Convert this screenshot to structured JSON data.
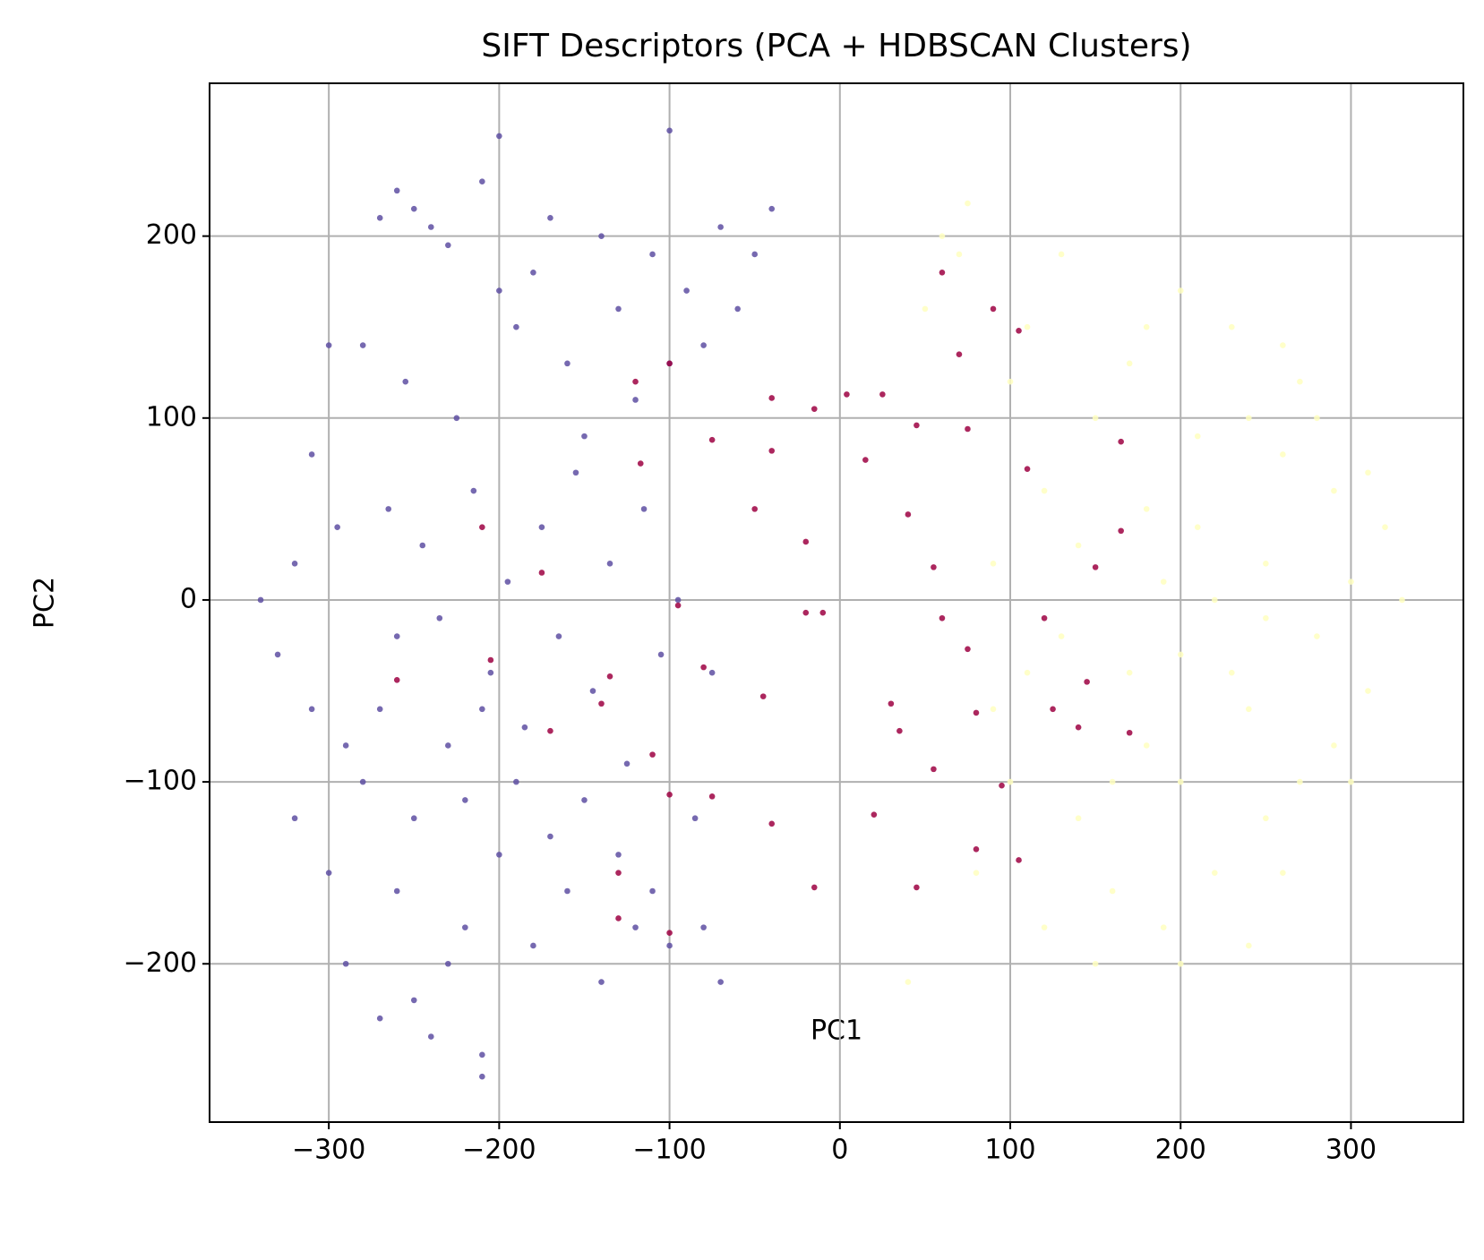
{
  "chart_data": {
    "type": "scatter",
    "title": "SIFT Descriptors (PCA + HDBSCAN Clusters)",
    "x_label": "PC1",
    "y_label": "PC2",
    "xlim": [
      -370,
      366
    ],
    "ylim": [
      -287,
      284
    ],
    "grid": true,
    "xticks": [
      {
        "value": -300,
        "label": "−300"
      },
      {
        "value": -200,
        "label": "−200"
      },
      {
        "value": -100,
        "label": "−100"
      },
      0,
      100,
      200,
      300
    ],
    "yticks": [
      {
        "value": -200,
        "label": "−200"
      },
      {
        "value": -100,
        "label": "−100"
      },
      0,
      100,
      200
    ],
    "series": [
      {
        "color": "#5e4fa2",
        "x": [
          -250,
          -240,
          -260,
          -230,
          -210,
          -200,
          -270,
          -280,
          -255,
          -225,
          -190,
          -180,
          -170,
          -160,
          -150,
          -140,
          -130,
          -120,
          -110,
          -100,
          -90,
          -80,
          -70,
          -60,
          -50,
          -40,
          -300,
          -310,
          -320,
          -330,
          -340,
          -290,
          -265,
          -245,
          -235,
          -215,
          -205,
          -195,
          -185,
          -175,
          -165,
          -155,
          -145,
          -135,
          -125,
          -115,
          -105,
          -95,
          -85,
          -75,
          -250,
          -240,
          -230,
          -220,
          -210,
          -270,
          -260,
          -250,
          -200,
          -180,
          -160,
          -140,
          -120,
          -100,
          -300,
          -290,
          -280,
          -270,
          -260,
          -230,
          -220,
          -210,
          -190,
          -170,
          -150,
          -130,
          -110,
          -320,
          -310,
          -295,
          -200,
          -100,
          -210,
          -80,
          -70
        ],
        "y": [
          215,
          205,
          225,
          195,
          230,
          170,
          210,
          140,
          120,
          100,
          150,
          180,
          210,
          130,
          90,
          200,
          160,
          110,
          190,
          130,
          170,
          140,
          205,
          160,
          190,
          215,
          140,
          80,
          20,
          -30,
          0,
          -80,
          50,
          30,
          -10,
          60,
          -40,
          10,
          -70,
          40,
          -20,
          70,
          -50,
          20,
          -90,
          50,
          -30,
          0,
          -120,
          -40,
          -220,
          -240,
          -200,
          -180,
          -250,
          -230,
          -160,
          -120,
          -140,
          -190,
          -160,
          -210,
          -180,
          -190,
          -150,
          -200,
          -100,
          -60,
          -20,
          -80,
          -110,
          -60,
          -100,
          -130,
          -110,
          -140,
          -160,
          -120,
          -60,
          40,
          255,
          258,
          -262,
          -180,
          -210
        ]
      },
      {
        "color": "#ffffbf",
        "x": [
          220,
          250,
          200,
          180,
          240,
          260,
          280,
          300,
          330,
          310,
          290,
          270,
          230,
          200,
          170,
          150,
          140,
          160,
          190,
          220,
          250,
          270,
          290,
          120,
          110,
          100,
          90,
          80,
          70,
          60,
          130,
          200,
          240,
          150,
          180,
          210,
          320,
          300,
          260,
          120,
          100,
          50,
          40,
          75,
          230,
          210,
          250,
          190,
          170,
          280,
          310,
          140,
          160,
          200,
          240,
          260,
          180,
          110,
          90,
          130
        ],
        "y": [
          0,
          20,
          -30,
          50,
          -60,
          80,
          -20,
          10,
          0,
          -50,
          60,
          120,
          150,
          170,
          130,
          100,
          -120,
          -160,
          -180,
          -150,
          -120,
          -100,
          -80,
          60,
          -40,
          -100,
          20,
          -150,
          190,
          200,
          190,
          -200,
          -190,
          -200,
          -80,
          90,
          40,
          -100,
          140,
          -180,
          120,
          160,
          -210,
          218,
          -40,
          40,
          -10,
          10,
          -40,
          100,
          70,
          30,
          -100,
          -100,
          100,
          -150,
          150,
          150,
          -60,
          -20
        ]
      },
      {
        "color": "#9e0142",
        "x": [
          60,
          90,
          105,
          70,
          -120,
          -100,
          25,
          4,
          -40,
          -15,
          45,
          75,
          -117,
          -75,
          -40,
          15,
          110,
          165,
          -50,
          40,
          -20,
          55,
          150,
          -175,
          -95,
          -20,
          -10,
          60,
          120,
          75,
          -140,
          -80,
          -45,
          30,
          80,
          125,
          145,
          -110,
          -170,
          35,
          55,
          95,
          -100,
          -75,
          -130,
          -40,
          20,
          -15,
          45,
          80,
          105,
          -100,
          -130,
          -210,
          -205,
          -135,
          -260,
          140,
          165,
          170
        ],
        "y": [
          180,
          160,
          148,
          135,
          120,
          130,
          113,
          113,
          111,
          105,
          96,
          94,
          75,
          88,
          82,
          77,
          72,
          87,
          50,
          47,
          32,
          18,
          18,
          15,
          -3,
          -7,
          -7,
          -10,
          -10,
          -27,
          -57,
          -37,
          -53,
          -57,
          -62,
          -60,
          -45,
          -85,
          -72,
          -72,
          -93,
          -102,
          -107,
          -108,
          -150,
          -123,
          -118,
          -158,
          -158,
          -137,
          -143,
          -183,
          -175,
          40,
          -33,
          -42,
          -44,
          -70,
          38,
          -73
        ]
      }
    ]
  }
}
